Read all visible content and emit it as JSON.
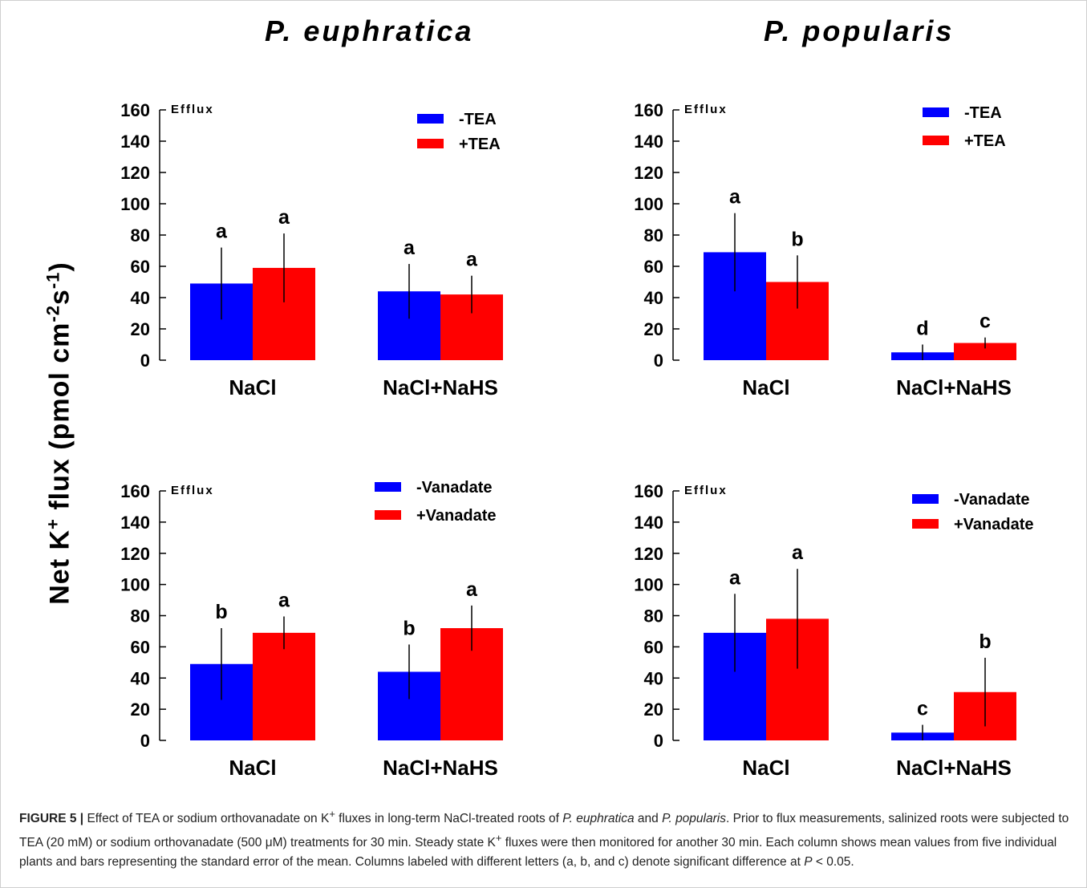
{
  "titles": {
    "left": "P. euphratica",
    "right": "P. popularis"
  },
  "y_axis_label": {
    "prefix": "Net K",
    "sup1": "+",
    "mid": " flux (pmol cm",
    "sup2": "-2",
    "s": "s",
    "sup3": "-1",
    "suffix": ")"
  },
  "colors": {
    "minus": "#0000ff",
    "plus": "#ff0000"
  },
  "chart_data": [
    {
      "type": "bar",
      "panel": "top-left",
      "categories": [
        "NaCl",
        "NaCl+NaHS"
      ],
      "series": [
        {
          "name": "-TEA",
          "values": [
            49,
            44
          ],
          "errors": [
            23,
            17.5
          ],
          "letters": [
            "a",
            "a"
          ]
        },
        {
          "name": "+TEA",
          "values": [
            59,
            42
          ],
          "errors": [
            22,
            12
          ],
          "letters": [
            "a",
            "a"
          ]
        }
      ],
      "ylim": [
        0,
        160
      ],
      "yticks": [
        0,
        20,
        40,
        60,
        80,
        100,
        120,
        140,
        160
      ],
      "annotation": "Efflux",
      "legend_position": "top-right"
    },
    {
      "type": "bar",
      "panel": "top-right",
      "categories": [
        "NaCl",
        "NaCl+NaHS"
      ],
      "series": [
        {
          "name": "-TEA",
          "values": [
            69,
            5
          ],
          "errors": [
            25,
            5
          ],
          "letters": [
            "a",
            "d"
          ]
        },
        {
          "name": "+TEA",
          "values": [
            50,
            11
          ],
          "errors": [
            17,
            3.5
          ],
          "letters": [
            "b",
            "c"
          ]
        }
      ],
      "ylim": [
        0,
        160
      ],
      "yticks": [
        0,
        20,
        40,
        60,
        80,
        100,
        120,
        140,
        160
      ],
      "annotation": "Efflux",
      "legend_position": "top-right"
    },
    {
      "type": "bar",
      "panel": "bottom-left",
      "categories": [
        "NaCl",
        "NaCl+NaHS"
      ],
      "series": [
        {
          "name": "-Vanadate",
          "values": [
            49,
            44
          ],
          "errors": [
            23,
            17.5
          ],
          "letters": [
            "b",
            "b"
          ]
        },
        {
          "name": "+Vanadate",
          "values": [
            69,
            72
          ],
          "errors": [
            10.5,
            14.5
          ],
          "letters": [
            "a",
            "a"
          ]
        }
      ],
      "ylim": [
        0,
        160
      ],
      "yticks": [
        0,
        20,
        40,
        60,
        80,
        100,
        120,
        140,
        160
      ],
      "annotation": "Efflux",
      "legend_position": "top-right"
    },
    {
      "type": "bar",
      "panel": "bottom-right",
      "categories": [
        "NaCl",
        "NaCl+NaHS"
      ],
      "series": [
        {
          "name": "-Vanadate",
          "values": [
            69,
            5
          ],
          "errors": [
            25,
            5
          ],
          "letters": [
            "a",
            "c"
          ]
        },
        {
          "name": "+Vanadate",
          "values": [
            78,
            31
          ],
          "errors": [
            32,
            22
          ],
          "letters": [
            "a",
            "b"
          ]
        }
      ],
      "ylim": [
        0,
        160
      ],
      "yticks": [
        0,
        20,
        40,
        60,
        80,
        100,
        120,
        140,
        160
      ],
      "annotation": "Efflux",
      "legend_position": "top-right"
    }
  ],
  "caption": {
    "label": "FIGURE 5 |",
    "t1": " Effect of TEA or sodium orthovanadate on K",
    "sup1": "+",
    "t2": " fluxes in long-term NaCl-treated roots of ",
    "sp1": "P. euphratica",
    "t3": " and ",
    "sp2": "P. popularis",
    "t4": ". Prior to flux measurements, salinized roots were subjected to TEA (20 mM) or sodium orthovanadate (500 μM) treatments for 30 min. Steady state K",
    "sup2": "+",
    "t5": " fluxes were then monitored for another 30 min. Each column shows mean values from five individual plants and bars representing the standard error of the mean. Columns labeled with different letters (a, b, and c) denote significant difference at ",
    "p": "P",
    "t6": " < 0.05."
  }
}
